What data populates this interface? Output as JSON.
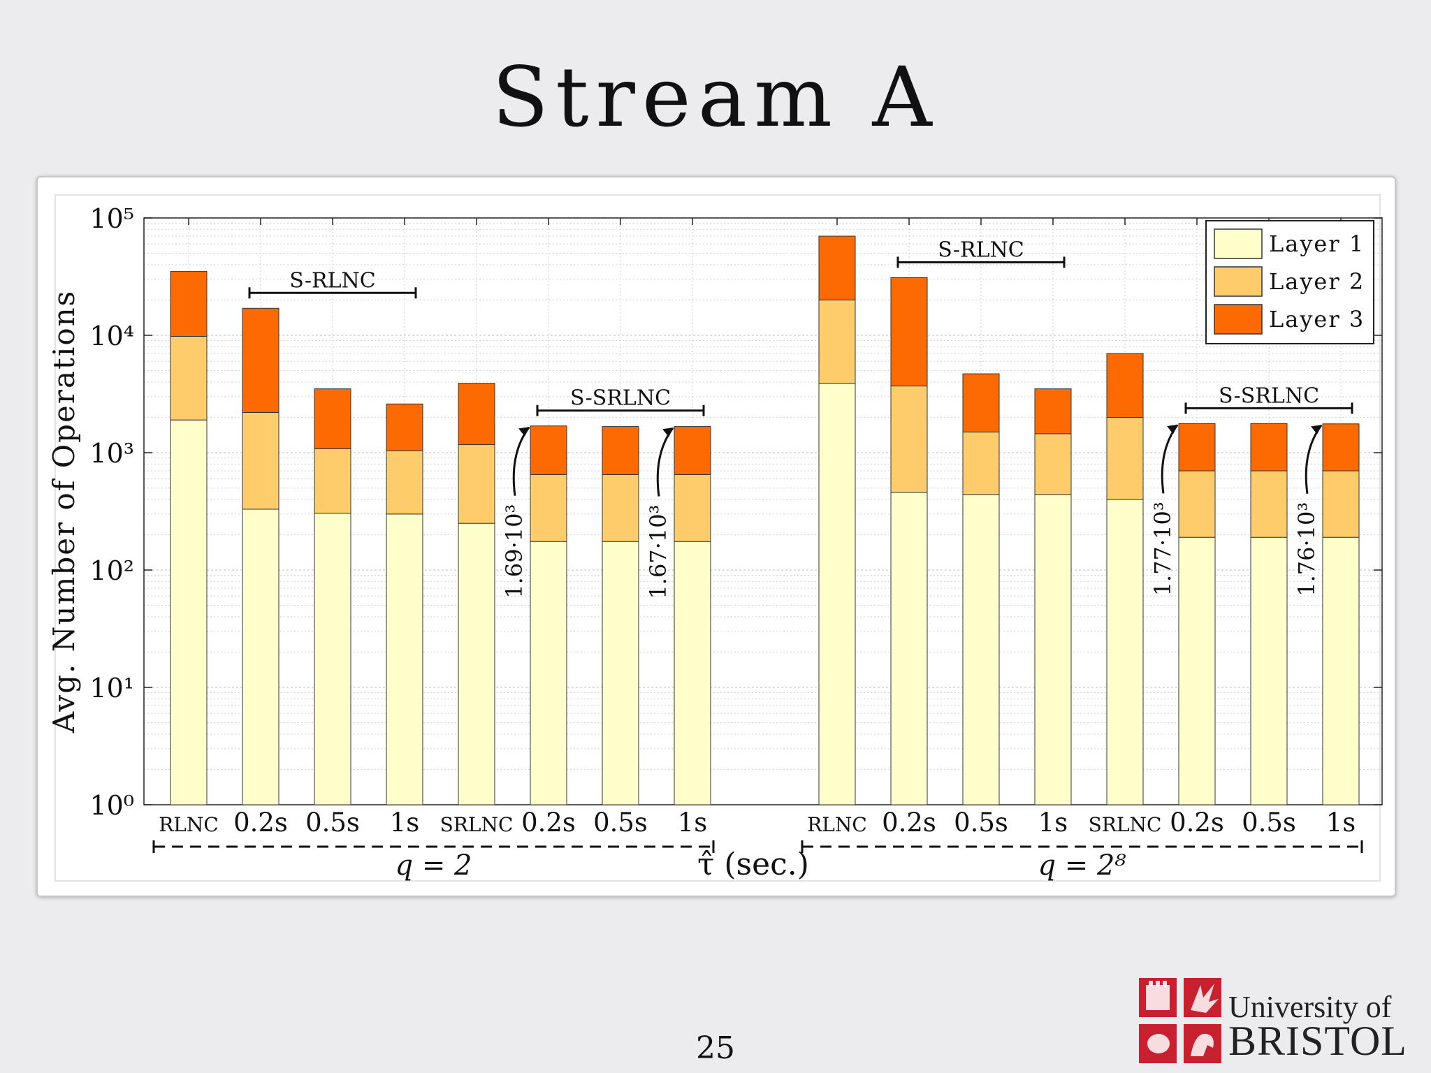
{
  "slide": {
    "title": "Stream A",
    "page_number": "25",
    "logo_line1": "University of",
    "logo_line2": "BRISTOL"
  },
  "chart_data": {
    "type": "bar",
    "stacked": true,
    "y_scale": "log",
    "ylim": [
      1,
      100000
    ],
    "ylabel": "Avg. Number of Operations",
    "xlabel": "τ̂ (sec.)",
    "grid": true,
    "legend_placement": "top-right",
    "y_ticks": [
      "10⁰",
      "10¹",
      "10²",
      "10³",
      "10⁴",
      "10⁵"
    ],
    "groups": [
      {
        "label": "q = 2",
        "brackets": [
          {
            "label": "S-RLNC",
            "from_bar": 1,
            "to_bar": 3
          },
          {
            "label": "S-SRLNC",
            "from_bar": 5,
            "to_bar": 7
          }
        ],
        "annotations": [
          {
            "text": "1.69·10³",
            "bar": 5
          },
          {
            "text": "1.67·10³",
            "bar": 7
          }
        ],
        "bars": [
          {
            "category": "RLNC",
            "small": true,
            "cumulative": [
              1900,
              9800,
              35000
            ]
          },
          {
            "category": "0.2s",
            "small": false,
            "cumulative": [
              330,
              2200,
              17000
            ]
          },
          {
            "category": "0.5s",
            "small": false,
            "cumulative": [
              305,
              1080,
              3500
            ]
          },
          {
            "category": "1s",
            "small": false,
            "cumulative": [
              300,
              1040,
              2600
            ]
          },
          {
            "category": "SRLNC",
            "small": true,
            "cumulative": [
              250,
              1170,
              3900
            ]
          },
          {
            "category": "0.2s",
            "small": false,
            "cumulative": [
              175,
              650,
              1690
            ]
          },
          {
            "category": "0.5s",
            "small": false,
            "cumulative": [
              175,
              650,
              1670
            ]
          },
          {
            "category": "1s",
            "small": false,
            "cumulative": [
              175,
              650,
              1670
            ]
          }
        ]
      },
      {
        "label": "q = 2⁸",
        "brackets": [
          {
            "label": "S-RLNC",
            "from_bar": 1,
            "to_bar": 3
          },
          {
            "label": "S-SRLNC",
            "from_bar": 5,
            "to_bar": 7
          }
        ],
        "annotations": [
          {
            "text": "1.77·10³",
            "bar": 5
          },
          {
            "text": "1.76·10³",
            "bar": 7
          }
        ],
        "bars": [
          {
            "category": "RLNC",
            "small": true,
            "cumulative": [
              3900,
              20000,
              70000
            ]
          },
          {
            "category": "0.2s",
            "small": false,
            "cumulative": [
              460,
              3700,
              31000
            ]
          },
          {
            "category": "0.5s",
            "small": false,
            "cumulative": [
              440,
              1500,
              4700
            ]
          },
          {
            "category": "1s",
            "small": false,
            "cumulative": [
              440,
              1450,
              3500
            ]
          },
          {
            "category": "SRLNC",
            "small": true,
            "cumulative": [
              400,
              2000,
              7000
            ]
          },
          {
            "category": "0.2s",
            "small": false,
            "cumulative": [
              190,
              700,
              1770
            ]
          },
          {
            "category": "0.5s",
            "small": false,
            "cumulative": [
              190,
              700,
              1770
            ]
          },
          {
            "category": "1s",
            "small": false,
            "cumulative": [
              190,
              700,
              1760
            ]
          }
        ]
      }
    ],
    "series": [
      {
        "name": "Layer 1",
        "color": "#ffffcc"
      },
      {
        "name": "Layer 2",
        "color": "#fecc6b"
      },
      {
        "name": "Layer 3",
        "color": "#fd6a02"
      }
    ]
  }
}
